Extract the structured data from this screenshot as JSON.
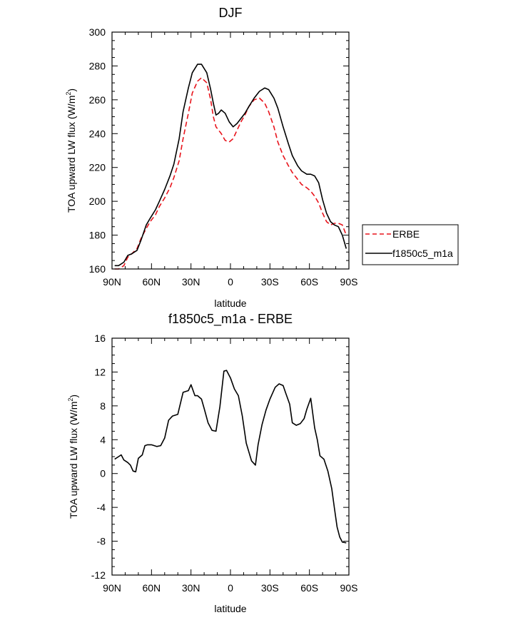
{
  "chart_data": [
    {
      "type": "line",
      "title": "DJF",
      "xlabel": "latitude",
      "ylabel": "TOA upward LW flux (W/m",
      "ylabel_sup": "2",
      "ylabel_end": ")",
      "xlim": [
        -90,
        90
      ],
      "ylim": [
        160,
        300
      ],
      "xticks": [
        -90,
        -60,
        -30,
        0,
        30,
        60,
        90
      ],
      "xticklabels": [
        "90N",
        "60N",
        "30N",
        "0",
        "30S",
        "60S",
        "90S"
      ],
      "yticks": [
        160,
        180,
        200,
        220,
        240,
        260,
        280,
        300
      ],
      "yticklabels": [
        "160",
        "180",
        "200",
        "220",
        "240",
        "260",
        "280",
        "300"
      ],
      "legend": [
        "ERBE",
        "f1850c5_m1a"
      ],
      "series": [
        {
          "name": "ERBE",
          "color": "#e8141c",
          "dash": "dashed",
          "x": [
            -88,
            -85,
            -81,
            -78,
            -75,
            -71,
            -68,
            -64,
            -61,
            -57,
            -54,
            -50,
            -46,
            -43,
            -39,
            -36,
            -32,
            -29,
            -25,
            -22,
            -18,
            -15,
            -13,
            -11,
            -9,
            -7,
            -4,
            -1,
            2,
            5,
            8,
            11,
            14,
            18,
            22,
            26,
            29,
            33,
            36,
            40,
            44,
            47,
            51,
            54,
            58,
            61,
            64,
            67,
            70,
            73,
            76,
            79,
            82,
            85,
            88
          ],
          "y": [
            160,
            160,
            162,
            167,
            169,
            172,
            178,
            184,
            188,
            192,
            197,
            202,
            208,
            214,
            224,
            237,
            252,
            264,
            271,
            273,
            270,
            260,
            250,
            244,
            242,
            240,
            236,
            235,
            237,
            242,
            247,
            251,
            256,
            260,
            261,
            258,
            253,
            244,
            235,
            227,
            221,
            217,
            213,
            210,
            208,
            206,
            203,
            199,
            193,
            188,
            186,
            187,
            187,
            186,
            180
          ]
        },
        {
          "name": "f1850c5_m1a",
          "color": "#000000",
          "dash": "solid",
          "x": [
            -88,
            -85,
            -81,
            -78,
            -75,
            -71,
            -68,
            -64,
            -61,
            -57,
            -54,
            -50,
            -46,
            -43,
            -39,
            -36,
            -32,
            -29,
            -25,
            -22,
            -18,
            -15,
            -13,
            -11,
            -9,
            -7,
            -4,
            -1,
            2,
            5,
            8,
            11,
            14,
            18,
            22,
            26,
            29,
            33,
            36,
            40,
            44,
            47,
            51,
            54,
            58,
            61,
            64,
            67,
            70,
            73,
            76,
            79,
            82,
            85,
            88
          ],
          "y": [
            162,
            162,
            164,
            168,
            169,
            171,
            177,
            186,
            190,
            195,
            200,
            207,
            215,
            222,
            237,
            253,
            267,
            276,
            281,
            281,
            276,
            266,
            258,
            251,
            252,
            254,
            252,
            247,
            244,
            246,
            249,
            252,
            256,
            261,
            265,
            267,
            266,
            261,
            255,
            244,
            234,
            227,
            221,
            218,
            216,
            216,
            215,
            211,
            201,
            193,
            188,
            186,
            185,
            180,
            172
          ]
        }
      ]
    },
    {
      "type": "line",
      "title": "f1850c5_m1a - ERBE",
      "xlabel": "latitude",
      "ylabel": "TOA upward LW flux (W/m",
      "ylabel_sup": "2",
      "ylabel_end": ")",
      "xlim": [
        -90,
        90
      ],
      "ylim": [
        -12,
        16
      ],
      "xticks": [
        -90,
        -60,
        -30,
        0,
        30,
        60,
        90
      ],
      "xticklabels": [
        "90N",
        "60N",
        "30N",
        "0",
        "30S",
        "60S",
        "90S"
      ],
      "yticks": [
        -12,
        -8,
        -4,
        0,
        4,
        8,
        12,
        16
      ],
      "yticklabels": [
        "-12",
        "-8",
        "-4",
        "0",
        "4",
        "8",
        "12",
        "16"
      ],
      "series": [
        {
          "name": "f1850c5_m1a - ERBE",
          "color": "#000000",
          "dash": "solid",
          "x": [
            -88,
            -85,
            -83,
            -81,
            -78,
            -76,
            -74,
            -72,
            -70,
            -67,
            -65,
            -63,
            -60,
            -56,
            -53,
            -50,
            -47,
            -44,
            -40,
            -36,
            -32,
            -30,
            -27,
            -25,
            -22,
            -20,
            -17,
            -14,
            -11,
            -8,
            -5,
            -3,
            0,
            3,
            6,
            9,
            12,
            16,
            19,
            21,
            24,
            27,
            30,
            34,
            37,
            40,
            42,
            45,
            47,
            50,
            53,
            56,
            58,
            61,
            64,
            66,
            68,
            71,
            74,
            77,
            79,
            81,
            83,
            85,
            88
          ],
          "y": [
            1.7,
            2.0,
            2.2,
            1.6,
            1.3,
            1.0,
            0.3,
            0.2,
            1.8,
            2.2,
            3.3,
            3.4,
            3.4,
            3.2,
            3.3,
            4.2,
            6.3,
            6.8,
            7.0,
            9.6,
            9.8,
            10.5,
            9.2,
            9.2,
            8.8,
            7.7,
            6.0,
            5.1,
            5.0,
            7.9,
            12.1,
            12.2,
            11.3,
            10.0,
            9.2,
            6.8,
            3.6,
            1.5,
            1.0,
            3.4,
            5.8,
            7.5,
            8.8,
            10.2,
            10.6,
            10.4,
            9.5,
            8.2,
            6.0,
            5.7,
            5.9,
            6.5,
            7.6,
            8.9,
            5.4,
            4.0,
            2.1,
            1.7,
            0.3,
            -1.8,
            -4.1,
            -6.3,
            -7.5,
            -8.1,
            -8.2
          ]
        }
      ]
    }
  ]
}
